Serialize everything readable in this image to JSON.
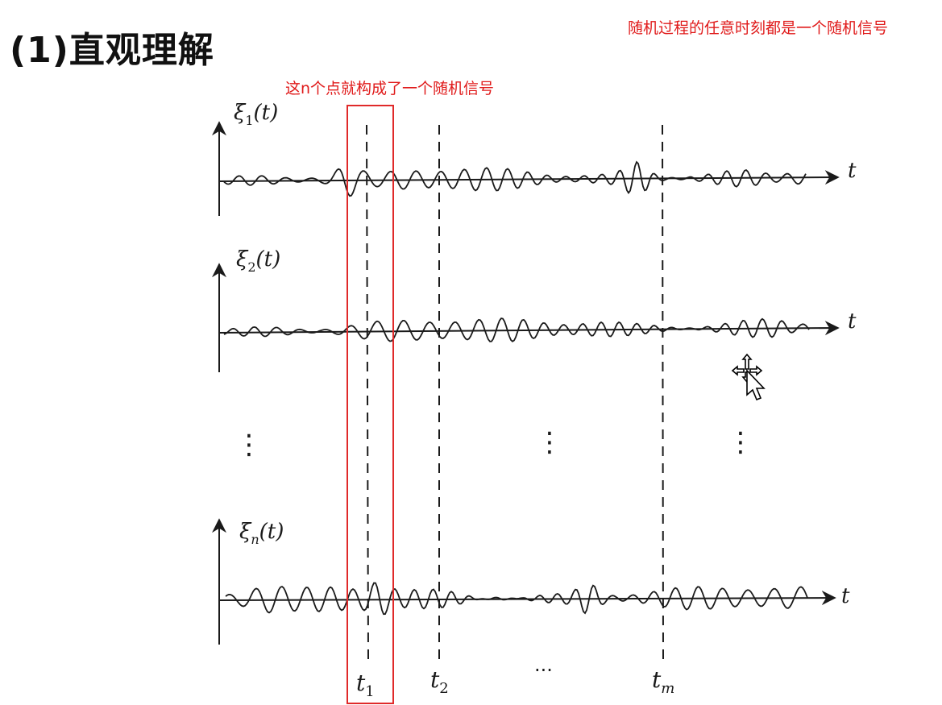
{
  "heading": "(1)直观理解",
  "annotations": {
    "top_right": "随机过程的任意时刻都是一个随机信号",
    "highlight": "这n个点就构成了一个随机信号"
  },
  "figure": {
    "signals": [
      {
        "sym": "ξ",
        "sub": "1",
        "arg": "(t)",
        "axis_label": "t"
      },
      {
        "sym": "ξ",
        "sub": "2",
        "arg": "(t)",
        "axis_label": "t"
      },
      {
        "sym": "ξ",
        "sub": "n",
        "arg": "(t)",
        "axis_label": "t"
      }
    ],
    "time_markers": [
      {
        "sym": "t",
        "sub": "1"
      },
      {
        "sym": "t",
        "sub": "2"
      },
      {
        "sym": "t",
        "sub": "m"
      }
    ],
    "time_ellipsis": "···",
    "vertical_ellipsis": "⋮"
  },
  "colors": {
    "annotation": "#e01a1a",
    "ink": "#1a1a1a",
    "highlight_box": "#e02a2a"
  },
  "icons": [
    "move-cursor-icon"
  ]
}
